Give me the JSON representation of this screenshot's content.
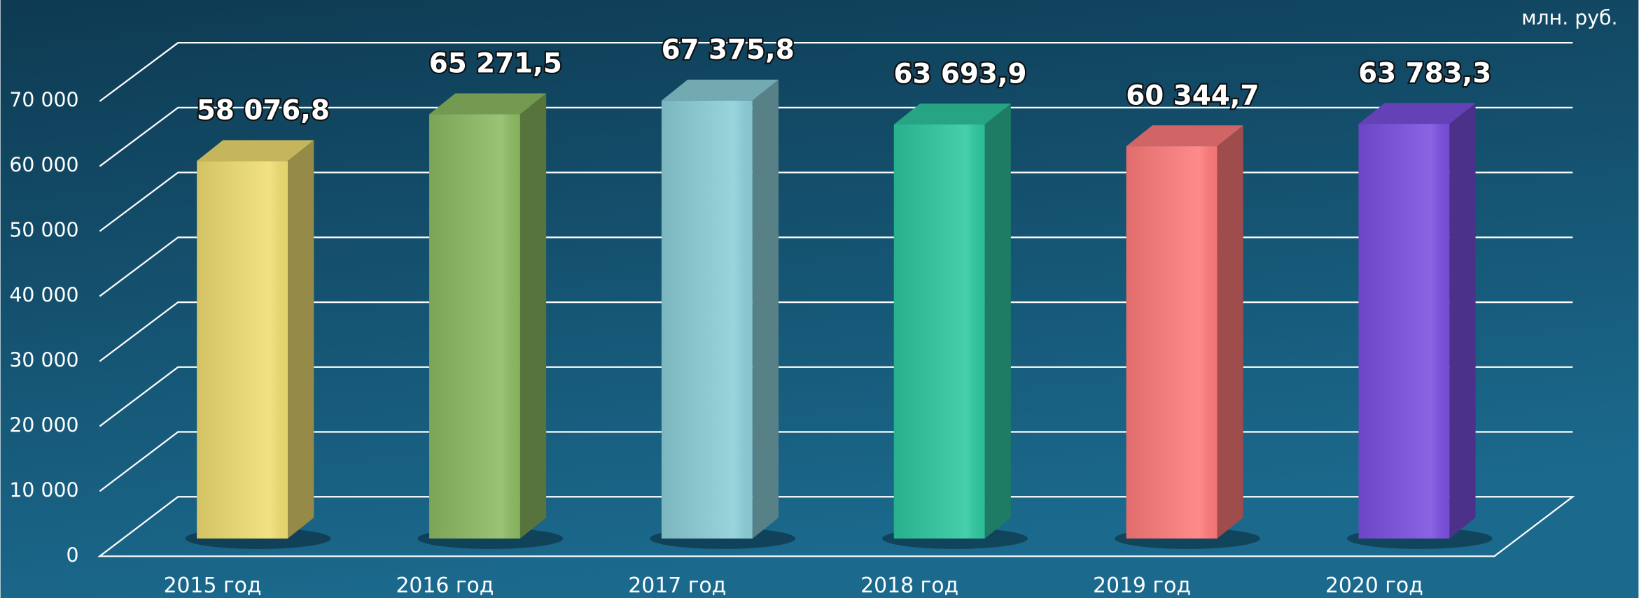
{
  "chart_data": {
    "type": "bar3d",
    "unit_label": "млн. руб.",
    "categories": [
      "2015 год",
      "2016 год",
      "2017 год",
      "2018 год",
      "2019 год",
      "2020 год"
    ],
    "values": [
      58076.8,
      65271.5,
      67375.8,
      63693.9,
      60344.7,
      63783.3
    ],
    "value_labels": [
      "58 076,8",
      "65 271,5",
      "67 375,8",
      "63 693,9",
      "60 344,7",
      "63 783,3"
    ],
    "colors": [
      "#f0de72",
      "#8dbb62",
      "#8ccfd9",
      "#2ec8a0",
      "#ff7b7b",
      "#7b4fe0"
    ],
    "ylim": [
      0,
      70000
    ],
    "yticks": [
      {
        "value": 0,
        "label": "0"
      },
      {
        "value": 10000,
        "label": "10 000"
      },
      {
        "value": 20000,
        "label": "20 000"
      },
      {
        "value": 30000,
        "label": "30 000"
      },
      {
        "value": 40000,
        "label": "40 000"
      },
      {
        "value": 50000,
        "label": "50 000"
      },
      {
        "value": 60000,
        "label": "60 000"
      },
      {
        "value": 70000,
        "label": "70 000"
      }
    ],
    "grid": true
  }
}
